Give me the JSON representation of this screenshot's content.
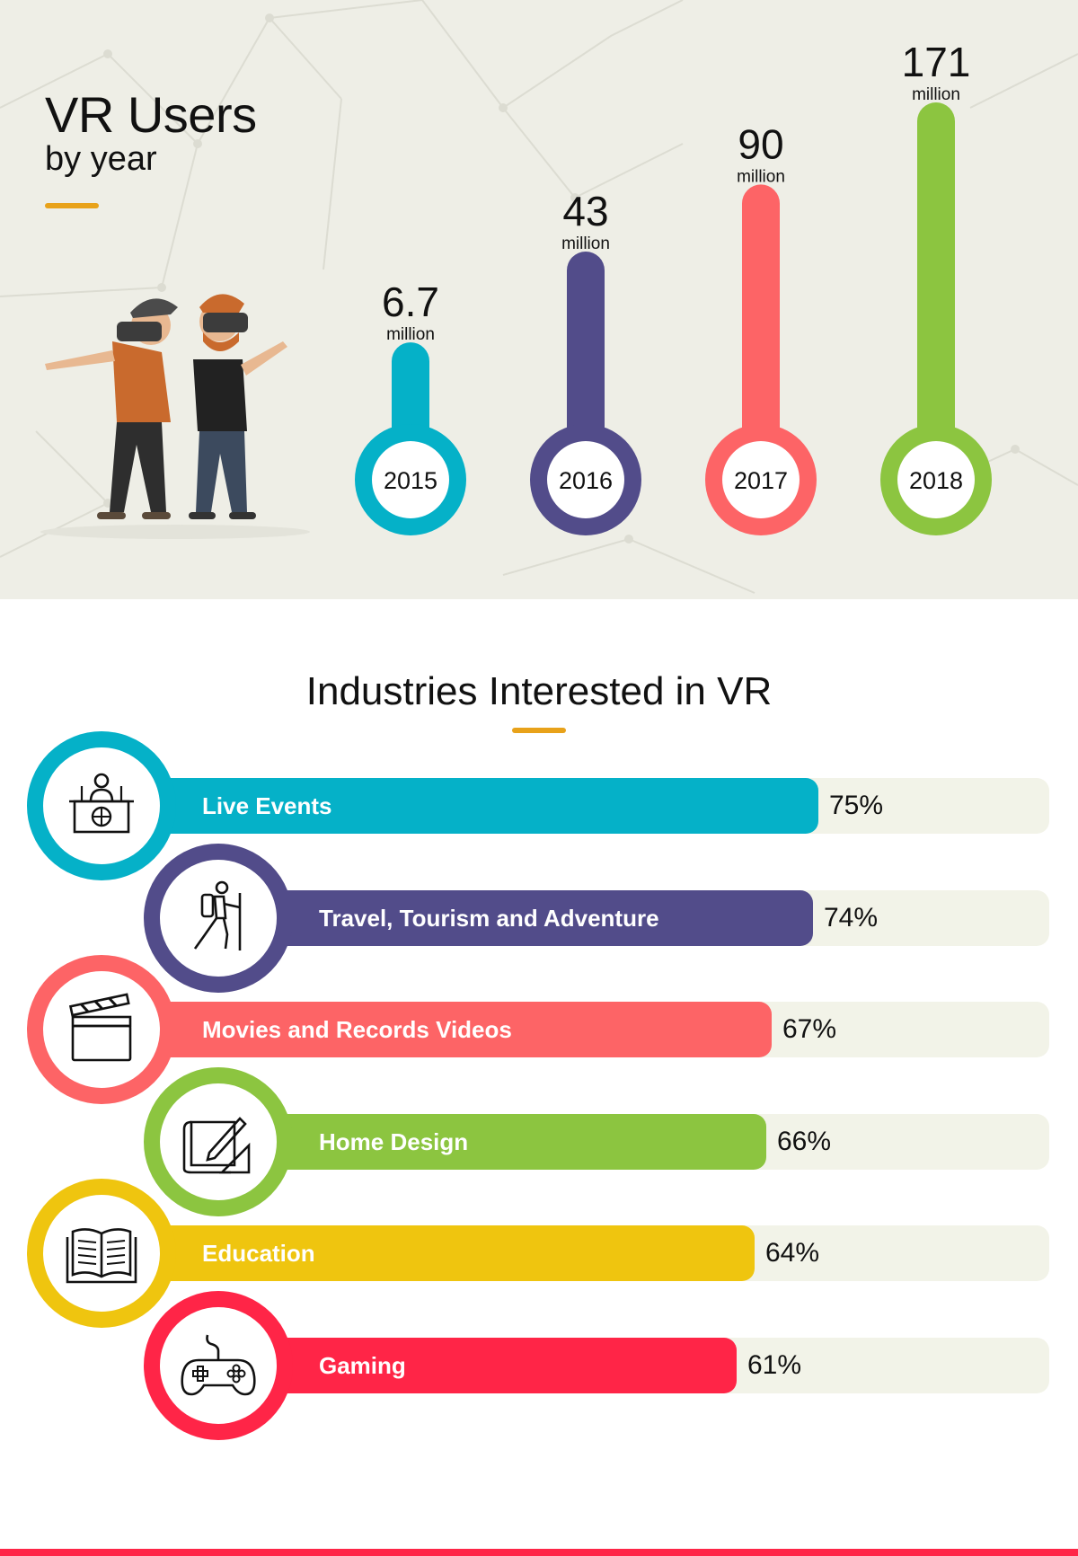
{
  "colors": {
    "accent": "#e8a21a",
    "cyan": "#05b1c8",
    "purple": "#524c8a",
    "salmon": "#fd6466",
    "green": "#8cc540",
    "yellow": "#efc50f",
    "red": "#ff2547",
    "track": "#f2f3e8"
  },
  "header": {
    "title": "VR Users",
    "subtitle": "by year"
  },
  "chart_data": [
    {
      "type": "bar",
      "title": "VR Users by year",
      "unit": "million",
      "categories": [
        "2015",
        "2016",
        "2017",
        "2018"
      ],
      "values": [
        6.7,
        43,
        90,
        171
      ],
      "value_labels": [
        "6.7",
        "43",
        "90",
        "171"
      ],
      "colors": [
        "#05b1c8",
        "#524c8a",
        "#fd6466",
        "#8cc540"
      ]
    },
    {
      "type": "bar",
      "title": "Industries Interested in VR",
      "categories": [
        "Live Events",
        "Travel, Tourism and Adventure",
        "Movies and Records Videos",
        "Home Design",
        "Education",
        "Gaming"
      ],
      "values": [
        75,
        74,
        67,
        66,
        64,
        61
      ],
      "value_labels": [
        "75%",
        "74%",
        "67%",
        "66%",
        "64%",
        "61%"
      ],
      "icons": [
        "podium-icon",
        "hiker-icon",
        "clapperboard-icon",
        "drafting-icon",
        "book-icon",
        "gamepad-icon"
      ],
      "colors": [
        "#05b1c8",
        "#524c8a",
        "#fd6466",
        "#8cc540",
        "#efc50f",
        "#ff2547"
      ]
    }
  ]
}
